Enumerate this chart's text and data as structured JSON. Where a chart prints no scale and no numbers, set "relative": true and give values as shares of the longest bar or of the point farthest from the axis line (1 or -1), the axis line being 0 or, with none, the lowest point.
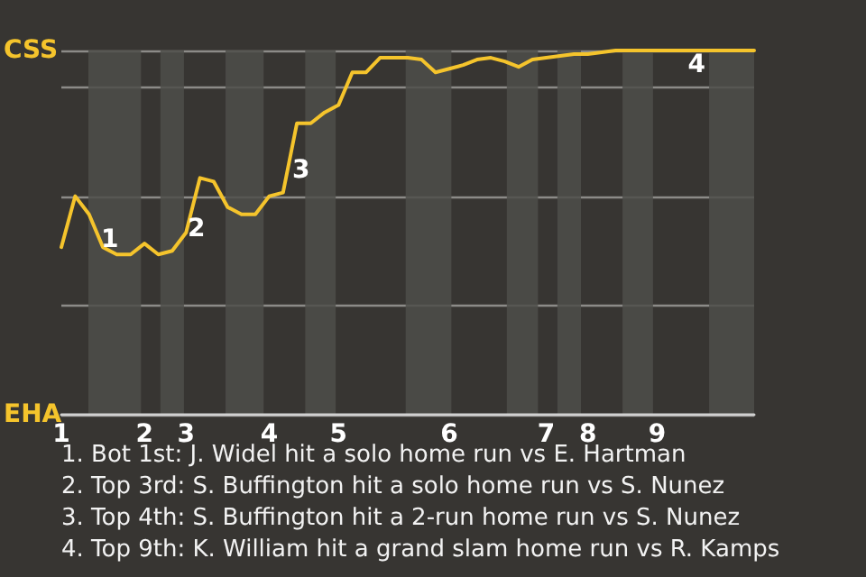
{
  "chart_data": {
    "type": "line",
    "relative": true,
    "grid": "y",
    "marker": "none",
    "line_style": "solid",
    "categories": [
      "1",
      null,
      null,
      null,
      null,
      null,
      "2",
      null,
      null,
      "3",
      null,
      null,
      null,
      null,
      null,
      "4",
      null,
      null,
      null,
      null,
      "5",
      null,
      null,
      null,
      null,
      null,
      null,
      null,
      "6",
      null,
      null,
      null,
      null,
      null,
      null,
      "7",
      null,
      null,
      "8",
      null,
      null,
      null,
      null,
      "9",
      null,
      null,
      null,
      null,
      null,
      null,
      null
    ],
    "series": [
      {
        "color": "#f5c42c",
        "values": [
          0.46,
          0.6,
          0.55,
          0.46,
          0.44,
          0.44,
          0.47,
          0.44,
          0.45,
          0.5,
          0.65,
          0.64,
          0.57,
          0.55,
          0.55,
          0.6,
          0.61,
          0.8,
          0.8,
          0.83,
          0.85,
          0.94,
          0.94,
          0.98,
          0.98,
          0.98,
          0.975,
          0.94,
          0.95,
          0.96,
          0.975,
          0.98,
          0.97,
          0.955,
          0.975,
          0.98,
          0.985,
          0.99,
          0.99,
          0.995,
          1,
          1,
          1,
          1,
          1,
          1,
          1,
          1,
          1,
          1,
          1
        ]
      }
    ],
    "annotations": [
      "CSS",
      "EHA",
      "1",
      "2",
      "3",
      "4",
      "1. Bot 1st: J. Widel hit a solo home run vs E. Hartman",
      "2. Top 3rd: S. Buffington hit a solo home run vs S. Nunez",
      "3. Top 4th: S. Buffington hit a 2-run home run vs S. Nunez",
      "4. Top 9th: K. William hit a grand slam home run vs R. Kamps"
    ]
  }
}
